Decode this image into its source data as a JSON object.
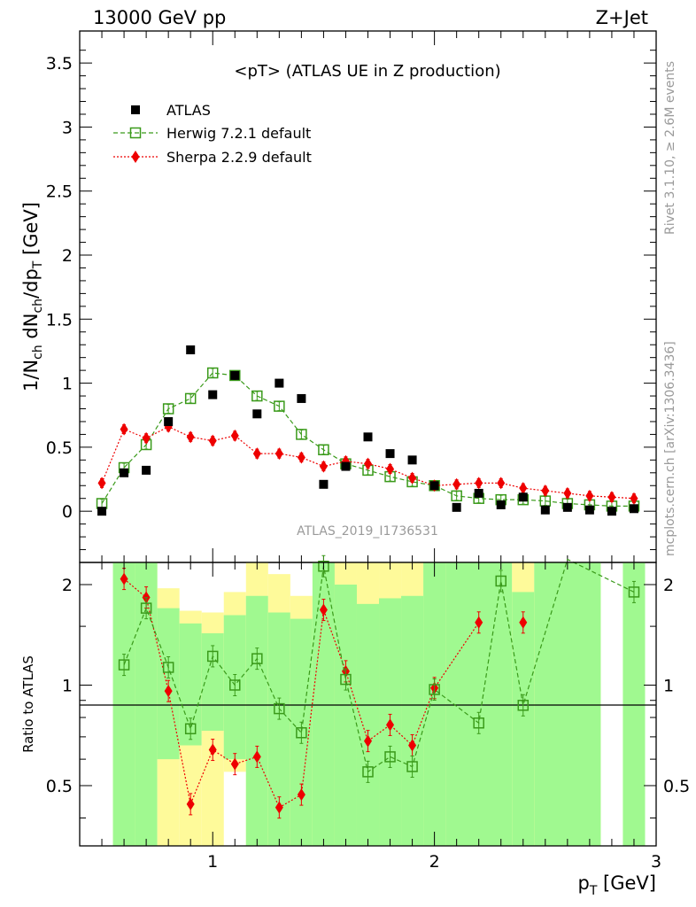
{
  "header": {
    "energy": "13000 GeV pp",
    "process": "Z+Jet"
  },
  "side_labels": {
    "rivet": "Rivet 3.1.10, ≥ 2.6M events",
    "mcplots": "mcplots.cern.ch [arXiv:1306.3436]"
  },
  "colors": {
    "atlas": "#000000",
    "herwig": "#3a9a1a",
    "sherpa": "#ee0000",
    "band_inner": "#a0f990",
    "band_outer": "#fefa9a"
  },
  "chart_data": [
    {
      "type": "scatter",
      "title": "<pT> (ATLAS UE in Z production)",
      "watermark": "ATLAS_2019_I1736531",
      "xlabel": "p_T [GeV]",
      "ylabel": "1/N_ch dN_ch/dp_T [GeV]",
      "xlim": [
        0.4,
        3.0
      ],
      "ylim": [
        -0.4,
        3.75
      ],
      "yticks": [
        0,
        0.5,
        1,
        1.5,
        2,
        2.5,
        3,
        3.5
      ],
      "ytick_labels": [
        "0",
        "0.5",
        "1",
        "1.5",
        "2",
        "2.5",
        "3",
        "3.5"
      ],
      "legend_position": "top-left",
      "x": [
        0.5,
        0.6,
        0.7,
        0.8,
        0.9,
        1.0,
        1.1,
        1.2,
        1.3,
        1.4,
        1.5,
        1.6,
        1.7,
        1.8,
        1.9,
        2.0,
        2.1,
        2.2,
        2.3,
        2.4,
        2.5,
        2.6,
        2.7,
        2.8,
        2.9
      ],
      "series": [
        {
          "name": "ATLAS",
          "marker": "filled-square",
          "values": [
            0.0,
            0.3,
            0.32,
            0.7,
            1.26,
            0.91,
            1.06,
            0.76,
            1.0,
            0.88,
            0.21,
            0.35,
            0.58,
            0.45,
            0.4,
            0.2,
            0.03,
            0.14,
            0.05,
            0.11,
            0.01,
            0.03,
            0.01,
            0.0,
            0.02
          ]
        },
        {
          "name": "Herwig 7.2.1 default",
          "marker": "open-square",
          "line": "dashed",
          "values": [
            0.06,
            0.34,
            0.52,
            0.8,
            0.88,
            1.08,
            1.06,
            0.9,
            0.82,
            0.6,
            0.48,
            0.37,
            0.32,
            0.27,
            0.23,
            0.2,
            0.12,
            0.1,
            0.09,
            0.09,
            0.08,
            0.06,
            0.05,
            0.04,
            0.04
          ]
        },
        {
          "name": "Sherpa 2.2.9 default",
          "marker": "filled-diamond",
          "line": "dotted",
          "values": [
            0.22,
            0.64,
            0.57,
            0.66,
            0.58,
            0.55,
            0.59,
            0.45,
            0.45,
            0.42,
            0.35,
            0.39,
            0.37,
            0.33,
            0.26,
            0.2,
            0.21,
            0.22,
            0.22,
            0.18,
            0.16,
            0.14,
            0.12,
            0.11,
            0.1
          ]
        }
      ]
    },
    {
      "type": "scatter",
      "ylabel": "Ratio to ATLAS",
      "xlabel": "p_T [GeV]",
      "xlim": [
        0.4,
        3.0
      ],
      "ylim": [
        0.33,
        2.33
      ],
      "yticks": [
        0.5,
        1,
        2
      ],
      "ytick_labels": [
        "0.5",
        "1",
        "2"
      ],
      "xticks": [
        1,
        2,
        3
      ],
      "xtick_labels": [
        "1",
        "2",
        "3"
      ],
      "x": [
        0.6,
        0.7,
        0.8,
        0.9,
        1.0,
        1.1,
        1.2,
        1.3,
        1.4,
        1.5,
        1.6,
        1.7,
        1.8,
        1.9,
        2.0,
        2.2,
        2.3,
        2.4,
        2.6,
        2.9
      ],
      "series": [
        {
          "name": "Herwig 7.2.1 default",
          "values": [
            1.15,
            1.7,
            1.13,
            0.74,
            1.22,
            1.0,
            1.2,
            0.85,
            0.72,
            2.27,
            1.04,
            0.55,
            0.61,
            0.57,
            0.97,
            0.77,
            2.05,
            0.87,
            2.38,
            1.9
          ]
        },
        {
          "name": "Sherpa 2.2.9 default",
          "values": [
            2.08,
            1.83,
            0.96,
            0.44,
            0.64,
            0.58,
            0.61,
            0.43,
            0.47,
            1.68,
            1.1,
            0.68,
            0.76,
            0.66,
            0.98,
            1.54,
            null,
            1.54,
            null,
            null
          ]
        }
      ],
      "bands": [
        {
          "x0": 0.55,
          "x1": 0.65,
          "inner": [
            0.33,
            2.33
          ],
          "outer": [
            0.33,
            2.33
          ]
        },
        {
          "x0": 0.65,
          "x1": 0.75,
          "inner": [
            0.33,
            2.33
          ],
          "outer": [
            0.33,
            2.33
          ]
        },
        {
          "x0": 0.75,
          "x1": 0.85,
          "inner": [
            0.6,
            1.7
          ],
          "outer": [
            0.33,
            1.95
          ]
        },
        {
          "x0": 0.85,
          "x1": 0.95,
          "inner": [
            0.66,
            1.53
          ],
          "outer": [
            0.33,
            1.67
          ]
        },
        {
          "x0": 0.95,
          "x1": 1.05,
          "inner": [
            0.73,
            1.43
          ],
          "outer": [
            0.33,
            1.65
          ]
        },
        {
          "x0": 1.05,
          "x1": 1.15,
          "inner": [
            0.6,
            1.62
          ],
          "outer": [
            0.55,
            1.9
          ]
        },
        {
          "x0": 1.15,
          "x1": 1.25,
          "inner": [
            0.33,
            1.85
          ],
          "outer": [
            0.33,
            2.33
          ]
        },
        {
          "x0": 1.25,
          "x1": 1.35,
          "inner": [
            0.33,
            1.65
          ],
          "outer": [
            0.33,
            2.15
          ]
        },
        {
          "x0": 1.35,
          "x1": 1.45,
          "inner": [
            0.33,
            1.58
          ],
          "outer": [
            0.33,
            1.85
          ]
        },
        {
          "x0": 1.45,
          "x1": 1.55,
          "inner": [
            0.33,
            2.33
          ],
          "outer": [
            0.33,
            2.33
          ]
        },
        {
          "x0": 1.55,
          "x1": 1.65,
          "inner": [
            0.33,
            2.0
          ],
          "outer": [
            0.33,
            2.33
          ]
        },
        {
          "x0": 1.65,
          "x1": 1.75,
          "inner": [
            0.33,
            1.75
          ],
          "outer": [
            0.33,
            2.33
          ]
        },
        {
          "x0": 1.75,
          "x1": 1.85,
          "inner": [
            0.33,
            1.82
          ],
          "outer": [
            0.33,
            2.33
          ]
        },
        {
          "x0": 1.85,
          "x1": 1.95,
          "inner": [
            0.33,
            1.85
          ],
          "outer": [
            0.33,
            2.33
          ]
        },
        {
          "x0": 1.95,
          "x1": 2.05,
          "inner": [
            0.33,
            2.33
          ],
          "outer": [
            0.33,
            2.33
          ]
        },
        {
          "x0": 2.05,
          "x1": 2.35,
          "inner": [
            0.33,
            2.33
          ],
          "outer": [
            0.33,
            2.33
          ]
        },
        {
          "x0": 2.35,
          "x1": 2.45,
          "inner": [
            0.33,
            1.9
          ],
          "outer": [
            0.33,
            2.33
          ]
        },
        {
          "x0": 2.45,
          "x1": 2.75,
          "inner": [
            0.33,
            2.33
          ],
          "outer": [
            0.33,
            2.33
          ]
        },
        {
          "x0": 2.85,
          "x1": 2.95,
          "inner": [
            0.33,
            2.33
          ],
          "outer": [
            0.33,
            2.33
          ]
        }
      ]
    }
  ]
}
